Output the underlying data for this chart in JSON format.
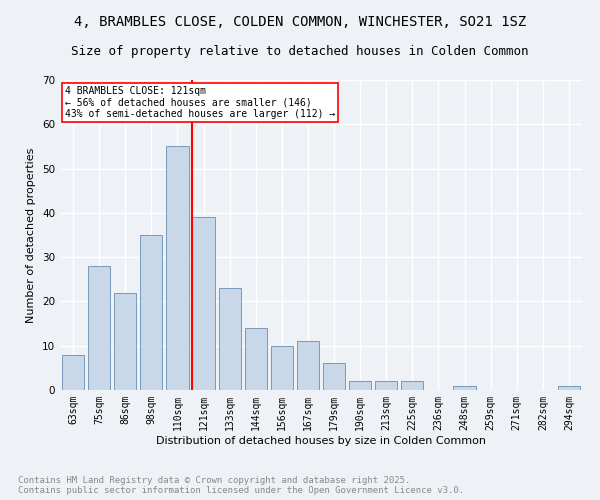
{
  "title1": "4, BRAMBLES CLOSE, COLDEN COMMON, WINCHESTER, SO21 1SZ",
  "title2": "Size of property relative to detached houses in Colden Common",
  "xlabel": "Distribution of detached houses by size in Colden Common",
  "ylabel": "Number of detached properties",
  "categories": [
    "63sqm",
    "75sqm",
    "86sqm",
    "98sqm",
    "110sqm",
    "121sqm",
    "133sqm",
    "144sqm",
    "156sqm",
    "167sqm",
    "179sqm",
    "190sqm",
    "213sqm",
    "225sqm",
    "236sqm",
    "248sqm",
    "259sqm",
    "271sqm",
    "282sqm",
    "294sqm"
  ],
  "values": [
    8,
    28,
    22,
    35,
    55,
    39,
    23,
    14,
    10,
    11,
    6,
    2,
    2,
    2,
    0,
    1,
    0,
    0,
    0,
    1
  ],
  "bar_color": "#c8d8e8",
  "bar_edge_color": "#7799bb",
  "vline_color": "red",
  "annotation_title": "4 BRAMBLES CLOSE: 121sqm",
  "annotation_line2": "← 56% of detached houses are smaller (146)",
  "annotation_line3": "43% of semi-detached houses are larger (112) →",
  "ylim": [
    0,
    70
  ],
  "yticks": [
    0,
    10,
    20,
    30,
    40,
    50,
    60,
    70
  ],
  "footnote": "Contains HM Land Registry data © Crown copyright and database right 2025.\nContains public sector information licensed under the Open Government Licence v3.0.",
  "bg_color": "#eef2f7",
  "plot_bg_color": "#eef2f7",
  "grid_color": "#ffffff",
  "title_fontsize": 10,
  "subtitle_fontsize": 9,
  "axis_fontsize": 8,
  "tick_fontsize": 7,
  "footnote_color": "#888888",
  "footnote_fontsize": 6.5
}
